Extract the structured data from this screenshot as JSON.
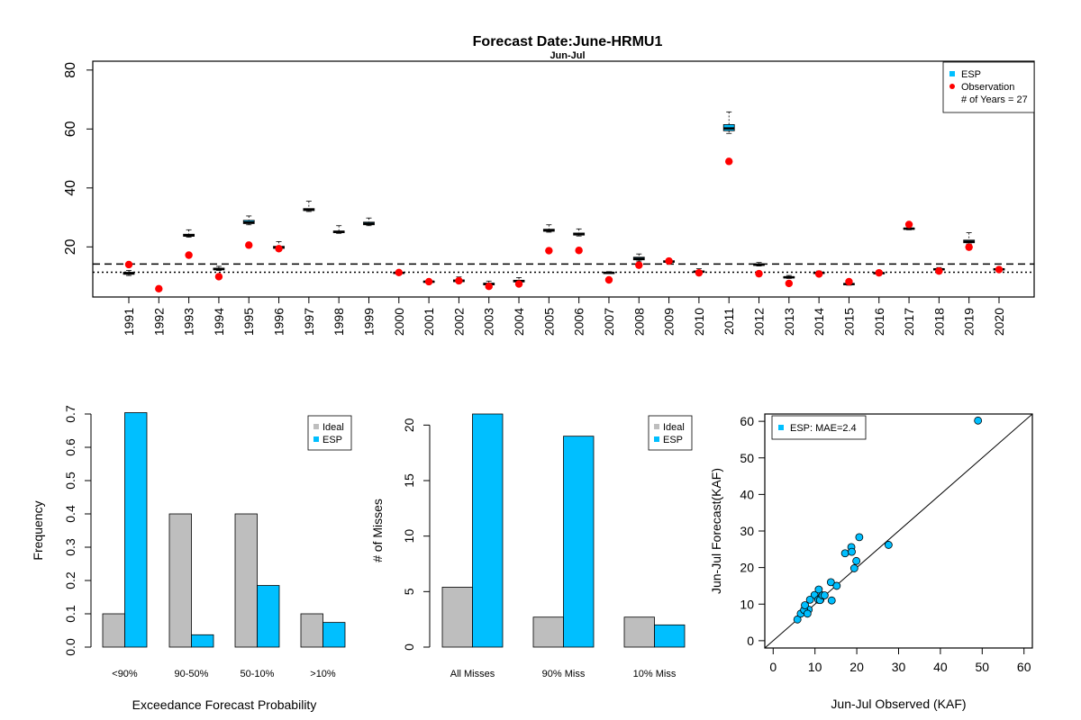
{
  "colors": {
    "esp": "#00BFFF",
    "ideal": "#BEBEBE",
    "observation": "#FF0000",
    "axis": "#000000"
  },
  "chart_data": [
    {
      "type": "boxplot",
      "title": "Forecast Date:June-HRMU1",
      "subtitle": "Jun-Jul",
      "ylim": [
        3,
        83
      ],
      "yticks": [
        20,
        40,
        60,
        80
      ],
      "reference_lines": [
        {
          "style": "dashed",
          "y": 14.2
        },
        {
          "style": "dotted",
          "y": 11.4
        }
      ],
      "legend": {
        "position": "top-right",
        "items": [
          {
            "label": "ESP",
            "marker": "square",
            "color": "#00BFFF"
          },
          {
            "label": "Observation",
            "marker": "circle",
            "color": "#FF0000"
          },
          {
            "label": "# of Years = 27",
            "marker": "none"
          }
        ]
      },
      "years": [
        "1991",
        "1992",
        "1993",
        "1994",
        "1995",
        "1996",
        "1997",
        "1998",
        "1999",
        "2000",
        "2001",
        "2002",
        "2003",
        "2004",
        "2005",
        "2006",
        "2007",
        "2008",
        "2009",
        "2010",
        "2011",
        "2012",
        "2013",
        "2014",
        "2015",
        "2016",
        "2017",
        "2018",
        "2019",
        "2020"
      ],
      "esp_boxes": [
        {
          "year": "1991",
          "min": 10.3,
          "q1": 10.7,
          "median": 11.0,
          "q3": 11.4,
          "max": 12.0
        },
        {
          "year": "1993",
          "min": 23.3,
          "q1": 23.6,
          "median": 23.9,
          "q3": 24.3,
          "max": 25.8
        },
        {
          "year": "1994",
          "min": 12.0,
          "q1": 12.2,
          "median": 12.5,
          "q3": 12.8,
          "max": 13.4
        },
        {
          "year": "1995",
          "min": 27.5,
          "q1": 27.9,
          "median": 28.3,
          "q3": 29.0,
          "max": 30.5
        },
        {
          "year": "1996",
          "min": 19.2,
          "q1": 19.5,
          "median": 19.8,
          "q3": 20.2,
          "max": 21.8
        },
        {
          "year": "1997",
          "min": 32.0,
          "q1": 32.3,
          "median": 32.7,
          "q3": 33.0,
          "max": 35.5
        },
        {
          "year": "1998",
          "min": 24.6,
          "q1": 24.8,
          "median": 25.1,
          "q3": 25.4,
          "max": 27.2
        },
        {
          "year": "1999",
          "min": 27.2,
          "q1": 27.5,
          "median": 27.9,
          "q3": 28.4,
          "max": 29.8
        },
        {
          "year": "2000",
          "min": 11.0,
          "q1": 11.1,
          "median": 11.2,
          "q3": 11.4,
          "max": 11.6
        },
        {
          "year": "2001",
          "min": 7.8,
          "q1": 8.0,
          "median": 8.2,
          "q3": 8.4,
          "max": 8.9
        },
        {
          "year": "2002",
          "min": 8.0,
          "q1": 8.2,
          "median": 8.5,
          "q3": 8.8,
          "max": 9.8
        },
        {
          "year": "2003",
          "min": 6.8,
          "q1": 7.1,
          "median": 7.4,
          "q3": 7.7,
          "max": 8.4
        },
        {
          "year": "2004",
          "min": 7.8,
          "q1": 8.1,
          "median": 8.4,
          "q3": 8.7,
          "max": 9.6
        },
        {
          "year": "2005",
          "min": 25.0,
          "q1": 25.3,
          "median": 25.6,
          "q3": 26.0,
          "max": 27.5
        },
        {
          "year": "2006",
          "min": 23.7,
          "q1": 24.0,
          "median": 24.3,
          "q3": 24.7,
          "max": 26.1
        },
        {
          "year": "2007",
          "min": 11.0,
          "q1": 11.1,
          "median": 11.2,
          "q3": 11.4,
          "max": 11.6
        },
        {
          "year": "2008",
          "min": 15.2,
          "q1": 15.6,
          "median": 16.0,
          "q3": 16.5,
          "max": 17.6
        },
        {
          "year": "2009",
          "min": 14.6,
          "q1": 14.8,
          "median": 15.0,
          "q3": 15.3,
          "max": 15.8
        },
        {
          "year": "2010",
          "min": 11.2,
          "q1": 11.4,
          "median": 11.6,
          "q3": 11.8,
          "max": 12.6
        },
        {
          "year": "2011",
          "min": 58.5,
          "q1": 59.4,
          "median": 60.2,
          "q3": 61.5,
          "max": 65.8
        },
        {
          "year": "2012",
          "min": 13.5,
          "q1": 13.7,
          "median": 14.0,
          "q3": 14.2,
          "max": 14.7
        },
        {
          "year": "2013",
          "min": 9.3,
          "q1": 9.5,
          "median": 9.7,
          "q3": 9.9,
          "max": 10.3
        },
        {
          "year": "2014",
          "min": 10.8,
          "q1": 11.0,
          "median": 11.2,
          "q3": 11.4,
          "max": 11.8
        },
        {
          "year": "2015",
          "min": 7.0,
          "q1": 7.2,
          "median": 7.4,
          "q3": 7.6,
          "max": 8.0
        },
        {
          "year": "2016",
          "min": 10.8,
          "q1": 11.0,
          "median": 11.1,
          "q3": 11.3,
          "max": 11.6
        },
        {
          "year": "2017",
          "min": 25.8,
          "q1": 26.0,
          "median": 26.2,
          "q3": 26.4,
          "max": 26.8
        },
        {
          "year": "2018",
          "min": 12.0,
          "q1": 12.2,
          "median": 12.4,
          "q3": 12.6,
          "max": 13.0
        },
        {
          "year": "2019",
          "min": 21.0,
          "q1": 21.4,
          "median": 21.8,
          "q3": 22.3,
          "max": 24.8
        },
        {
          "year": "2020",
          "min": 12.0,
          "q1": 12.2,
          "median": 12.4,
          "q3": 12.6,
          "max": 13.0
        }
      ],
      "observations": [
        {
          "year": "1991",
          "value": 14.0
        },
        {
          "year": "1992",
          "value": 5.8
        },
        {
          "year": "1993",
          "value": 17.2
        },
        {
          "year": "1994",
          "value": 9.9
        },
        {
          "year": "1995",
          "value": 20.6
        },
        {
          "year": "1996",
          "value": 19.4
        },
        {
          "year": "2000",
          "value": 11.3
        },
        {
          "year": "2001",
          "value": 8.2
        },
        {
          "year": "2002",
          "value": 8.5
        },
        {
          "year": "2003",
          "value": 6.6
        },
        {
          "year": "2004",
          "value": 7.4
        },
        {
          "year": "2005",
          "value": 18.7
        },
        {
          "year": "2006",
          "value": 18.8
        },
        {
          "year": "2007",
          "value": 8.8
        },
        {
          "year": "2008",
          "value": 13.8
        },
        {
          "year": "2009",
          "value": 15.2
        },
        {
          "year": "2010",
          "value": 11.2
        },
        {
          "year": "2011",
          "value": 49.0
        },
        {
          "year": "2012",
          "value": 10.9
        },
        {
          "year": "2013",
          "value": 7.6
        },
        {
          "year": "2014",
          "value": 10.8
        },
        {
          "year": "2015",
          "value": 8.2
        },
        {
          "year": "2016",
          "value": 11.2
        },
        {
          "year": "2017",
          "value": 27.6
        },
        {
          "year": "2018",
          "value": 11.8
        },
        {
          "year": "2019",
          "value": 19.9
        },
        {
          "year": "2020",
          "value": 12.3
        }
      ]
    },
    {
      "type": "bar",
      "xlabel": "Exceedance Forecast Probability",
      "ylabel": "Frequency",
      "ylim": [
        0,
        0.7
      ],
      "yticks": [
        0.0,
        0.1,
        0.2,
        0.3,
        0.4,
        0.5,
        0.6,
        0.7
      ],
      "ytick_labels": [
        "0.0",
        "0.1",
        "0.2",
        "0.3",
        "0.4",
        "0.5",
        "0.6",
        "0.7"
      ],
      "categories": [
        "<90%",
        "90-50%",
        "50-10%",
        ">10%"
      ],
      "series": [
        {
          "name": "Ideal",
          "color": "#BEBEBE",
          "values": [
            0.1,
            0.4,
            0.4,
            0.1
          ]
        },
        {
          "name": "ESP",
          "color": "#00BFFF",
          "values": [
            0.704,
            0.037,
            0.185,
            0.074
          ]
        }
      ],
      "legend": {
        "position": "top-right"
      }
    },
    {
      "type": "bar",
      "xlabel": "",
      "ylabel": "# of Misses",
      "ylim": [
        0,
        21
      ],
      "yticks": [
        0,
        5,
        10,
        15,
        20
      ],
      "ytick_labels": [
        "0",
        "5",
        "10",
        "15",
        "20"
      ],
      "categories": [
        "All Misses",
        "90% Miss",
        "10% Miss"
      ],
      "series": [
        {
          "name": "Ideal",
          "color": "#BEBEBE",
          "values": [
            5.4,
            2.7,
            2.7
          ]
        },
        {
          "name": "ESP",
          "color": "#00BFFF",
          "values": [
            21,
            19,
            2
          ]
        }
      ],
      "legend": {
        "position": "top-right"
      }
    },
    {
      "type": "scatter",
      "xlabel": "Jun-Jul Observed (KAF)",
      "ylabel": "Jun-Jul Forecast(KAF)",
      "xlim": [
        -2,
        62
      ],
      "ylim": [
        -2,
        62
      ],
      "xticks": [
        0,
        10,
        20,
        30,
        40,
        50,
        60
      ],
      "yticks": [
        0,
        10,
        20,
        30,
        40,
        50,
        60
      ],
      "reference_line": "1:1",
      "legend": {
        "position": "top-left",
        "label": "ESP: MAE=2.4",
        "color": "#00BFFF"
      },
      "points": [
        {
          "x": 14.0,
          "y": 11.0
        },
        {
          "x": 5.8,
          "y": 5.8
        },
        {
          "x": 17.2,
          "y": 23.9
        },
        {
          "x": 9.9,
          "y": 12.5
        },
        {
          "x": 20.6,
          "y": 28.3
        },
        {
          "x": 19.4,
          "y": 19.8
        },
        {
          "x": 11.3,
          "y": 11.2
        },
        {
          "x": 8.2,
          "y": 8.2
        },
        {
          "x": 8.5,
          "y": 8.5
        },
        {
          "x": 6.6,
          "y": 7.4
        },
        {
          "x": 7.4,
          "y": 8.4
        },
        {
          "x": 18.7,
          "y": 25.6
        },
        {
          "x": 18.8,
          "y": 24.3
        },
        {
          "x": 8.8,
          "y": 11.2
        },
        {
          "x": 13.8,
          "y": 16.0
        },
        {
          "x": 15.2,
          "y": 15.0
        },
        {
          "x": 11.2,
          "y": 11.6
        },
        {
          "x": 49.0,
          "y": 60.2
        },
        {
          "x": 10.9,
          "y": 14.0
        },
        {
          "x": 7.6,
          "y": 9.7
        },
        {
          "x": 10.8,
          "y": 11.2
        },
        {
          "x": 8.2,
          "y": 7.4
        },
        {
          "x": 11.2,
          "y": 11.1
        },
        {
          "x": 27.6,
          "y": 26.2
        },
        {
          "x": 11.8,
          "y": 12.4
        },
        {
          "x": 19.9,
          "y": 21.8
        },
        {
          "x": 12.3,
          "y": 12.4
        }
      ]
    }
  ]
}
